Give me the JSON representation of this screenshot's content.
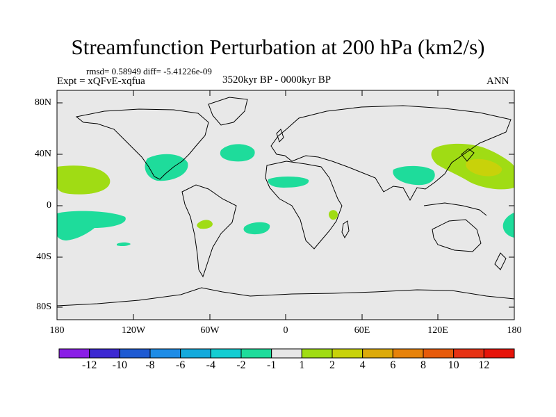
{
  "title": "Streamfunction Perturbation at 200 hPa (km2/s)",
  "stats": "rmsd= 0.58949 diff= -5.41226e-09",
  "experiment": "Expt = xQFvE-xqfua",
  "period": "3520kyr BP - 0000kyr BP",
  "season": "ANN",
  "axes": {
    "y_ticks": [
      "80N",
      "40N",
      "0",
      "40S",
      "80S"
    ],
    "x_ticks": [
      "180",
      "120W",
      "60W",
      "0",
      "60E",
      "120E",
      "180"
    ]
  },
  "colorbar": {
    "labels": [
      "-12",
      "-10",
      "-8",
      "-6",
      "-4",
      "-2",
      "-1",
      "1",
      "2",
      "4",
      "6",
      "8",
      "10",
      "12"
    ],
    "colors": [
      "#8a1ee6",
      "#3c28d2",
      "#1e5ad2",
      "#1e8ce6",
      "#14aadc",
      "#14cdd2",
      "#1edc9b",
      "#e6e6e6",
      "#a0dc14",
      "#c8d20a",
      "#dcaa0a",
      "#e6820a",
      "#e65a0a",
      "#e63214",
      "#e6140a"
    ]
  },
  "colors": {
    "land_background": "#e8e8e8",
    "neg_band": "#1edc9b",
    "pos_band_1": "#a0dc14",
    "pos_band_2": "#c8d20a"
  }
}
